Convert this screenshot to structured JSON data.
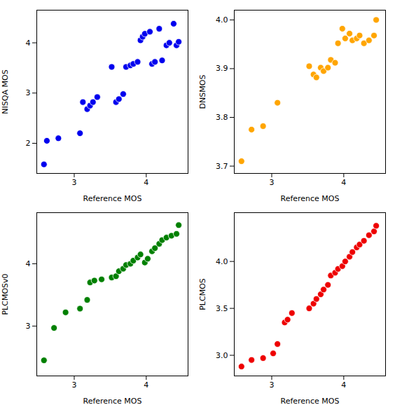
{
  "chart_data": [
    {
      "type": "scatter",
      "x": [
        2.58,
        2.62,
        2.78,
        3.08,
        3.12,
        3.18,
        3.22,
        3.26,
        3.32,
        3.52,
        3.58,
        3.62,
        3.68,
        3.72,
        3.78,
        3.82,
        3.88,
        3.92,
        3.95,
        3.98,
        4.05,
        4.08,
        4.12,
        4.18,
        4.22,
        4.28,
        4.32,
        4.38,
        4.42,
        4.45
      ],
      "values": [
        1.58,
        2.05,
        2.1,
        2.2,
        2.82,
        2.68,
        2.75,
        2.82,
        2.92,
        3.52,
        2.82,
        2.88,
        2.98,
        3.52,
        3.55,
        3.58,
        3.62,
        4.05,
        4.12,
        4.18,
        4.22,
        3.58,
        3.62,
        4.28,
        3.65,
        3.95,
        4.0,
        4.38,
        3.95,
        4.02
      ],
      "color": "#0000ee",
      "xlabel": "Reference MOS",
      "ylabel": "NISQA MOS",
      "xlim": [
        2.48,
        4.58
      ],
      "xticks": [
        3,
        4
      ],
      "ylim": [
        1.4,
        4.65
      ],
      "yticks": [
        2,
        3,
        4
      ]
    },
    {
      "type": "scatter",
      "x": [
        2.58,
        2.72,
        2.88,
        3.08,
        3.52,
        3.58,
        3.62,
        3.68,
        3.72,
        3.78,
        3.82,
        3.88,
        3.92,
        3.98,
        4.02,
        4.08,
        4.12,
        4.18,
        4.22,
        4.28,
        4.35,
        4.42,
        4.45
      ],
      "values": [
        3.71,
        3.775,
        3.782,
        3.83,
        3.905,
        3.888,
        3.882,
        3.902,
        3.895,
        3.902,
        3.918,
        3.912,
        3.952,
        3.982,
        3.962,
        3.972,
        3.958,
        3.962,
        3.968,
        3.952,
        3.958,
        3.968,
        4.0
      ],
      "color": "#FFA500",
      "xlabel": "Reference MOS",
      "ylabel": "DNSMOS",
      "xlim": [
        2.48,
        4.58
      ],
      "xticks": [
        3,
        4
      ],
      "ylim": [
        3.685,
        4.02
      ],
      "yticks": [
        3.7,
        3.8,
        3.9,
        {
          "value": 4,
          "label": "4.0"
        }
      ]
    },
    {
      "type": "scatter",
      "x": [
        2.58,
        2.72,
        2.88,
        3.08,
        3.18,
        3.22,
        3.28,
        3.38,
        3.52,
        3.58,
        3.62,
        3.68,
        3.72,
        3.78,
        3.82,
        3.88,
        3.92,
        3.98,
        4.02,
        4.08,
        4.12,
        4.18,
        4.22,
        4.28,
        4.35,
        4.42,
        4.45
      ],
      "values": [
        2.45,
        2.97,
        3.22,
        3.28,
        3.42,
        3.7,
        3.73,
        3.75,
        3.78,
        3.8,
        3.88,
        3.92,
        3.98,
        4.0,
        4.05,
        4.1,
        4.15,
        4.02,
        4.08,
        4.2,
        4.25,
        4.32,
        4.38,
        4.42,
        4.45,
        4.48,
        4.62
      ],
      "color": "#008000",
      "xlabel": "Reference MOS",
      "ylabel": "PLCMOSv0",
      "xlim": [
        2.48,
        4.58
      ],
      "xticks": [
        3,
        4
      ],
      "ylim": [
        2.2,
        4.82
      ],
      "yticks": [
        3,
        4
      ]
    },
    {
      "type": "scatter",
      "x": [
        2.58,
        2.72,
        2.88,
        3.02,
        3.08,
        3.18,
        3.22,
        3.28,
        3.52,
        3.58,
        3.62,
        3.68,
        3.72,
        3.78,
        3.82,
        3.88,
        3.92,
        3.98,
        4.02,
        4.08,
        4.12,
        4.18,
        4.22,
        4.28,
        4.35,
        4.42,
        4.45
      ],
      "values": [
        2.88,
        2.95,
        2.97,
        3.02,
        3.12,
        3.35,
        3.38,
        3.45,
        3.5,
        3.55,
        3.6,
        3.65,
        3.7,
        3.75,
        3.85,
        3.88,
        3.92,
        3.95,
        4.0,
        4.05,
        4.1,
        4.15,
        4.18,
        4.22,
        4.28,
        4.32,
        4.38
      ],
      "color": "#ee0000",
      "xlabel": "Reference MOS",
      "ylabel": "PLCMOS",
      "xlim": [
        2.48,
        4.58
      ],
      "xticks": [
        3,
        4
      ],
      "ylim": [
        2.78,
        4.52
      ],
      "yticks": [
        {
          "value": 3,
          "label": "3.0"
        },
        {
          "value": 3.5,
          "label": "3.5"
        },
        {
          "value": 4,
          "label": "4.0"
        }
      ]
    }
  ]
}
